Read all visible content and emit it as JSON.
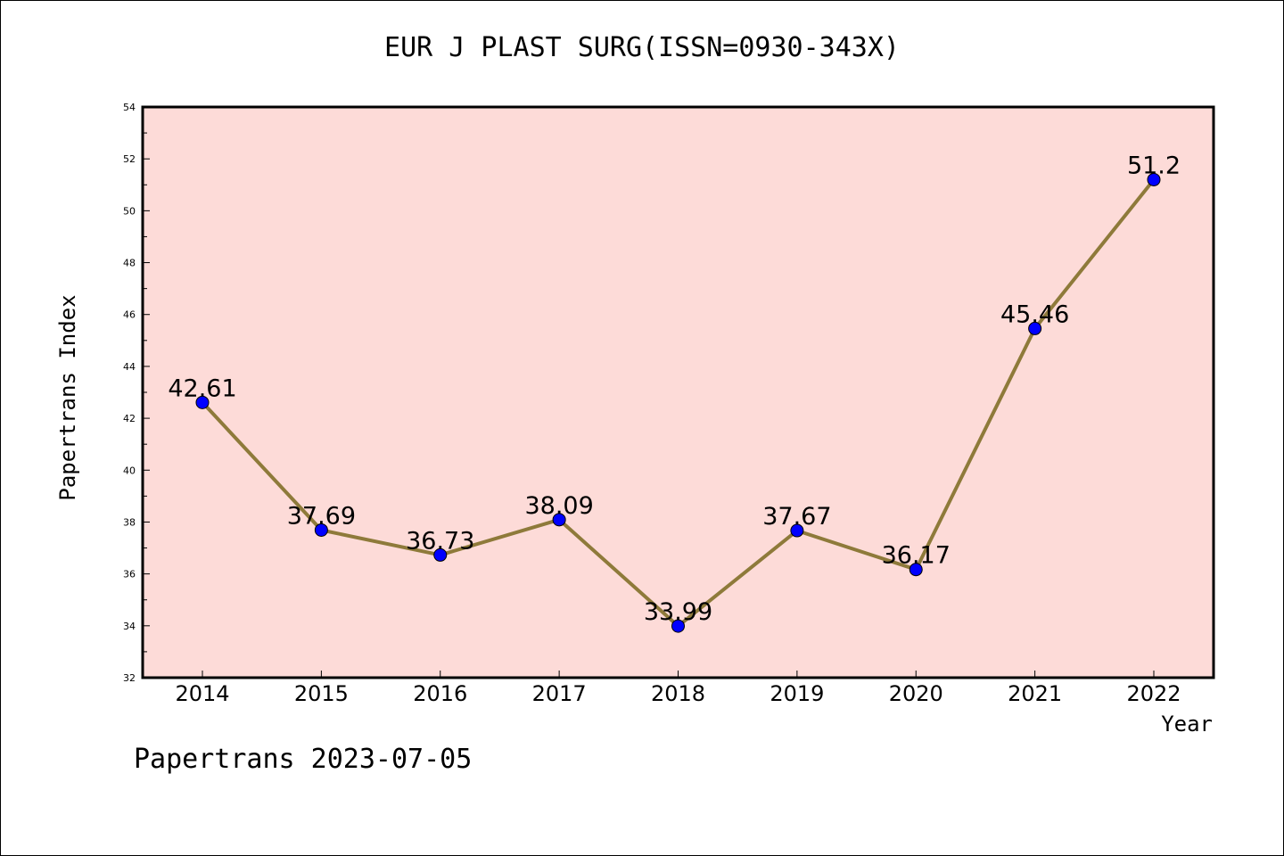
{
  "chart_data": {
    "type": "line",
    "title": "EUR J PLAST SURG(ISSN=0930-343X)",
    "xlabel": "Year",
    "ylabel": "Papertrans Index",
    "categories": [
      "2014",
      "2015",
      "2016",
      "2017",
      "2018",
      "2019",
      "2020",
      "2021",
      "2022"
    ],
    "values": [
      42.61,
      37.69,
      36.73,
      38.09,
      33.99,
      37.67,
      36.17,
      45.46,
      51.2
    ],
    "data_labels": [
      "42.61",
      "37.69",
      "36.73",
      "38.09",
      "33.99",
      "37.67",
      "36.17",
      "45.46",
      "51.2"
    ],
    "ylim": [
      32,
      54
    ],
    "yticks": [
      32,
      34,
      36,
      38,
      40,
      42,
      44,
      46,
      48,
      50,
      52,
      54
    ],
    "grid": false,
    "colors": {
      "plot_background": "#fddbd8",
      "line": "#8e7a3a",
      "marker": "#0000ff"
    }
  },
  "footer": "Papertrans 2023-07-05"
}
